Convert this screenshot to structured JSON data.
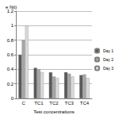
{
  "chart_data": {
    "type": "bar",
    "title": "e Nti)",
    "x_label": "Test concentrations",
    "categories": [
      "C",
      "TC1",
      "TC2",
      "TC3",
      "TC4"
    ],
    "series": [
      {
        "name": "Day 1",
        "color": "#595959",
        "values": [
          0.6,
          0.42,
          0.36,
          0.36,
          0.32
        ]
      },
      {
        "name": "Day 2",
        "color": "#a6a6a6",
        "values": [
          0.8,
          0.4,
          0.3,
          0.34,
          0.33
        ]
      },
      {
        "name": "Day 3",
        "color": "#d9d9d9",
        "values": [
          1.0,
          0.36,
          0.28,
          0.3,
          0.28
        ]
      }
    ],
    "ylim": [
      0,
      1.2
    ],
    "yticks": [
      0,
      0.2,
      0.4,
      0.6,
      0.8,
      1,
      1.2
    ],
    "grid": true,
    "legend": "right"
  }
}
